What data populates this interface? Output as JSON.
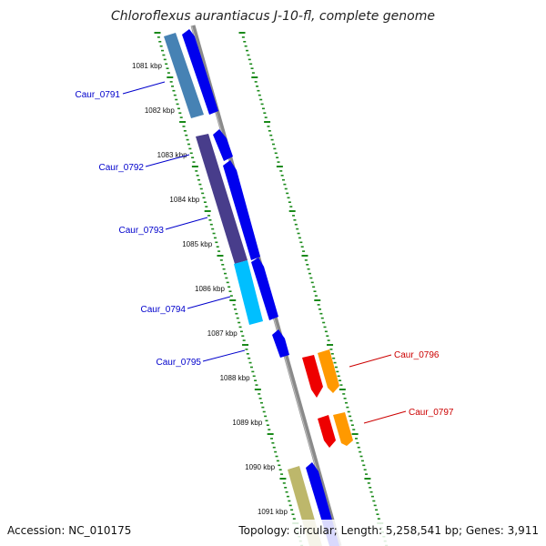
{
  "title": "Chloroflexus aurantiacus J-10-fl, complete genome",
  "footer": {
    "accession": "Accession: NC_010175",
    "summary": "Topology: circular; Length: 5,258,541 bp; Genes: 3,911"
  },
  "colors": {
    "backbone": "#8a8a8a",
    "ticks": "#1a8a1a",
    "forward_cds": "#0000ee",
    "left_label": "#0000cc",
    "right_label": "#cc0000",
    "right_cds_red": "#ee0000",
    "right_cds_orange": "#ff9900"
  },
  "kbp_labels": [
    "1081 kbp",
    "1082 kbp",
    "1083 kbp",
    "1084 kbp",
    "1085 kbp",
    "1086 kbp",
    "1087 kbp",
    "1088 kbp",
    "1089 kbp",
    "1090 kbp",
    "1091 kbp"
  ],
  "left_genes": [
    {
      "label": "Caur_0791",
      "color": "#4682b4"
    },
    {
      "label": "Caur_0792",
      "color": "#483d8b"
    },
    {
      "label": "Caur_0793",
      "color": "#483d8b"
    },
    {
      "label": "Caur_0794",
      "color": "#00bfff"
    },
    {
      "label": "Caur_0795",
      "color": "#0000ee"
    }
  ],
  "right_genes": [
    {
      "label": "Caur_0796"
    },
    {
      "label": "Caur_0797"
    }
  ],
  "bottom_gene_color": "#bdb76b"
}
